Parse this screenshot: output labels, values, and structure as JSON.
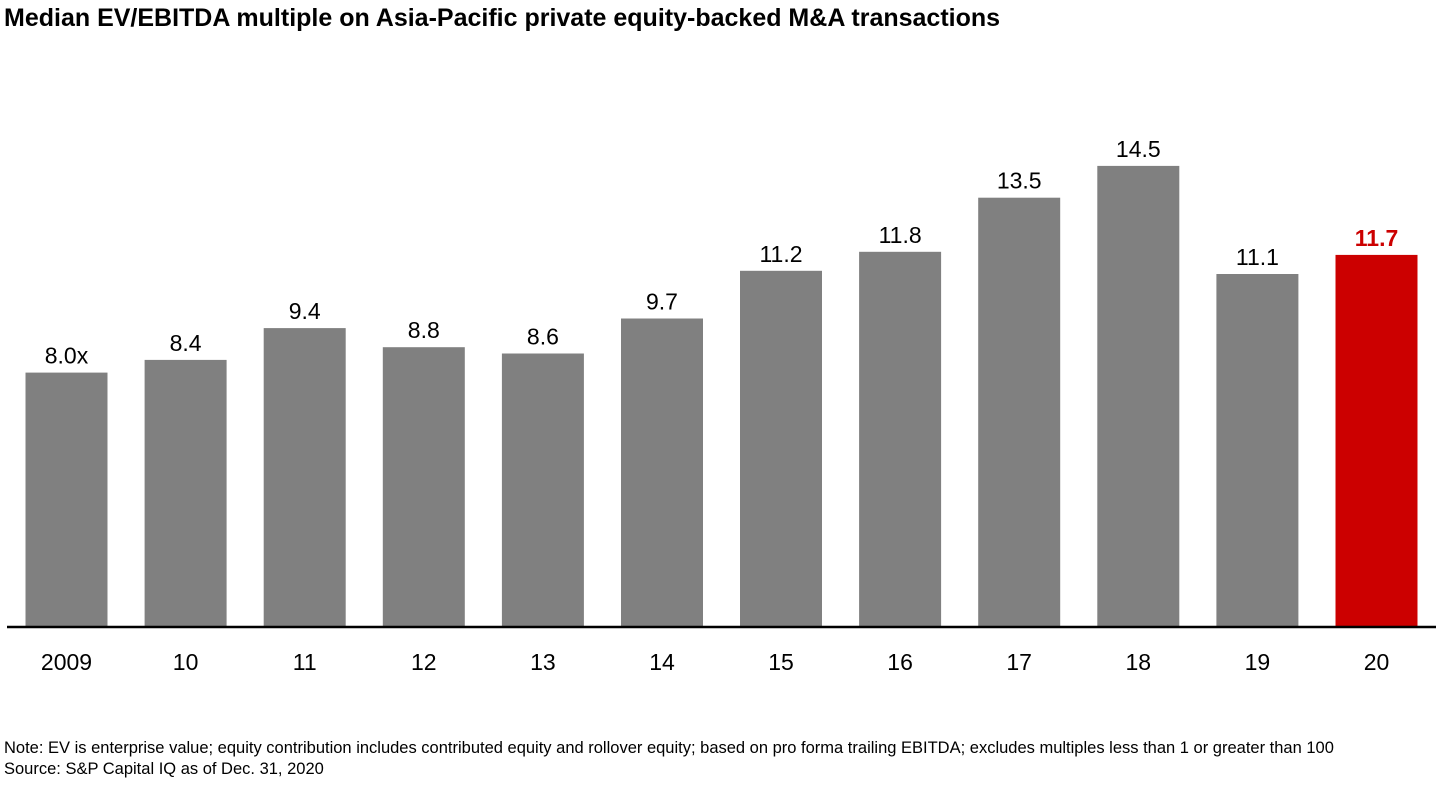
{
  "chart_data": {
    "type": "bar",
    "title": "Median EV/EBITDA multiple on Asia-Pacific private equity-backed M&A transactions",
    "categories": [
      "2009",
      "10",
      "11",
      "12",
      "13",
      "14",
      "15",
      "16",
      "17",
      "18",
      "19",
      "20"
    ],
    "values": [
      8.0,
      8.4,
      9.4,
      8.8,
      8.6,
      9.7,
      11.2,
      11.8,
      13.5,
      14.5,
      11.1,
      11.7
    ],
    "data_labels": [
      "8.0x",
      "8.4",
      "9.4",
      "8.8",
      "8.6",
      "9.7",
      "11.2",
      "11.8",
      "13.5",
      "14.5",
      "11.1",
      "11.7"
    ],
    "highlight_index": 11,
    "ylim": [
      0,
      17
    ],
    "grid": false,
    "legend": "none",
    "colors": {
      "bar": "#808080",
      "highlight": "#cc0000",
      "axis": "#000000",
      "label": "#000000"
    }
  },
  "notes": {
    "note": "Note: EV is enterprise value; equity contribution includes contributed equity and rollover equity; based on pro forma trailing EBITDA; excludes multiples less than 1 or greater than 100",
    "source": "Source: S&P Capital IQ as of Dec. 31, 2020"
  }
}
